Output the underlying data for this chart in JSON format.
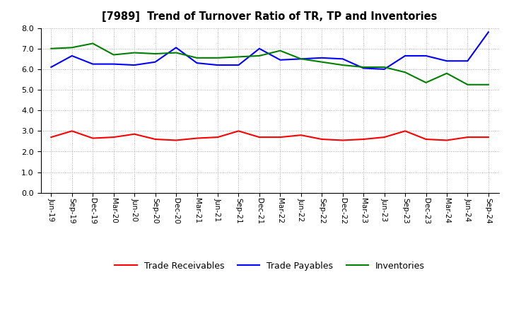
{
  "title": "[7989]  Trend of Turnover Ratio of TR, TP and Inventories",
  "x_labels": [
    "Jun-19",
    "Sep-19",
    "Dec-19",
    "Mar-20",
    "Jun-20",
    "Sep-20",
    "Dec-20",
    "Mar-21",
    "Jun-21",
    "Sep-21",
    "Dec-21",
    "Mar-22",
    "Jun-22",
    "Sep-22",
    "Dec-22",
    "Mar-23",
    "Jun-23",
    "Sep-23",
    "Dec-23",
    "Mar-24",
    "Jun-24",
    "Sep-24"
  ],
  "trade_receivables": [
    2.7,
    3.0,
    2.65,
    2.7,
    2.85,
    2.6,
    2.55,
    2.65,
    2.7,
    3.0,
    2.7,
    2.7,
    2.8,
    2.6,
    2.55,
    2.6,
    2.7,
    3.0,
    2.6,
    2.55,
    2.7,
    2.7
  ],
  "trade_payables": [
    6.1,
    6.65,
    6.25,
    6.25,
    6.2,
    6.35,
    7.05,
    6.3,
    6.2,
    6.2,
    7.0,
    6.45,
    6.5,
    6.55,
    6.5,
    6.05,
    6.0,
    6.65,
    6.65,
    6.4,
    6.4,
    7.8
  ],
  "inventories": [
    7.0,
    7.05,
    7.25,
    6.7,
    6.8,
    6.75,
    6.8,
    6.55,
    6.55,
    6.6,
    6.65,
    6.9,
    6.5,
    6.35,
    6.2,
    6.1,
    6.1,
    5.85,
    5.35,
    5.8,
    5.25,
    5.25
  ],
  "ylim": [
    0.0,
    8.0
  ],
  "yticks": [
    0.0,
    1.0,
    2.0,
    3.0,
    4.0,
    5.0,
    6.0,
    7.0,
    8.0
  ],
  "tr_color": "#ff0000",
  "tp_color": "#0000ff",
  "inv_color": "#008000",
  "background_color": "#ffffff",
  "grid_color": "#aaaaaa",
  "legend_tr": "Trade Receivables",
  "legend_tp": "Trade Payables",
  "legend_inv": "Inventories"
}
